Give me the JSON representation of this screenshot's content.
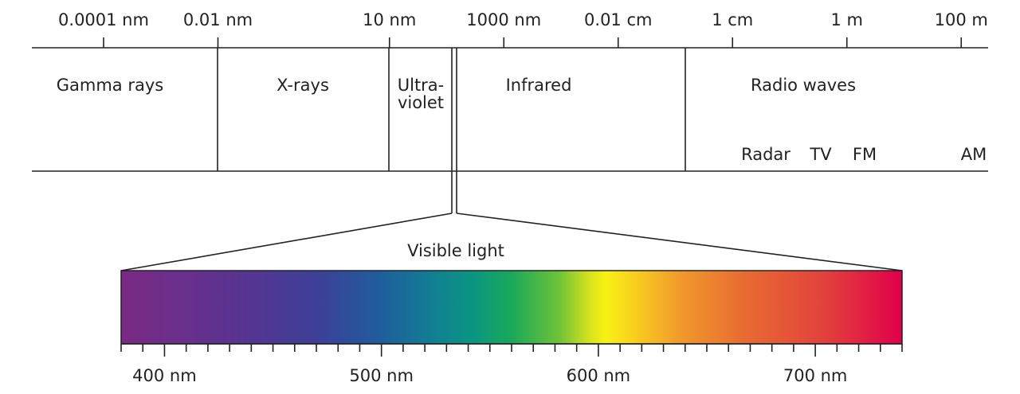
{
  "wavelength_scale": [
    "0.0001 nm",
    "0.01 nm",
    "10 nm",
    "1000 nm",
    "0.01 cm",
    "1 cm",
    "1 m",
    "100 m"
  ],
  "regions": [
    [
      "Gamma rays"
    ],
    [
      "X-rays"
    ],
    [
      "Ultra-",
      "violet"
    ],
    [
      "Infrared"
    ],
    [
      "Radio waves"
    ]
  ],
  "radio_bands": [
    "Radar",
    "TV",
    "FM",
    "AM"
  ],
  "visible_light": {
    "label": "Visible light",
    "scale": [
      "400 nm",
      "500 nm",
      "600 nm",
      "700 nm"
    ]
  }
}
